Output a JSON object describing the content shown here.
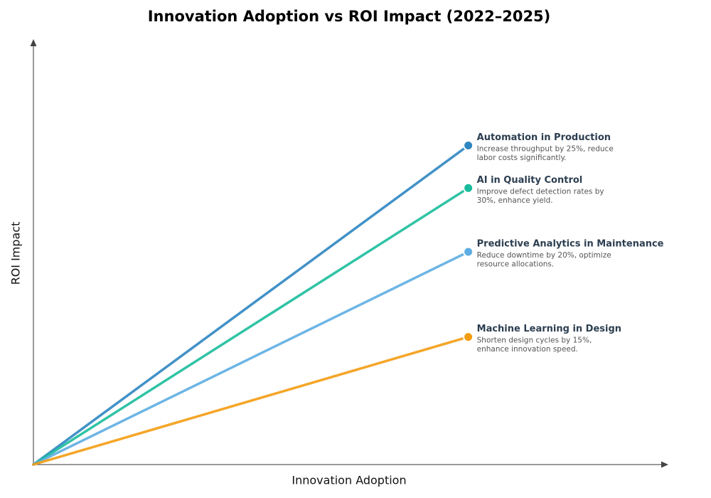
{
  "chart_data": {
    "type": "line",
    "title": "Innovation Adoption vs ROI Impact (2022–2025)",
    "x_label": "Innovation Adoption",
    "y_label": "ROI Impact",
    "xlim": [
      0,
      1.46
    ],
    "ylim": [
      0,
      1
    ],
    "series": [
      {
        "name": "Automation in Production",
        "color": "#2e86c1",
        "x": [
          0,
          1
        ],
        "values": [
          0,
          0.75
        ],
        "description": [
          "Increase throughput by 25%, reduce",
          "labor costs significantly."
        ]
      },
      {
        "name": "AI in Quality Control",
        "color": "#1abc9c",
        "x": [
          0,
          1
        ],
        "values": [
          0,
          0.65
        ],
        "description": [
          "Improve defect detection rates by",
          "30%, enhance yield."
        ]
      },
      {
        "name": "Predictive Analytics in Maintenance",
        "color": "#5dade2",
        "x": [
          0,
          1
        ],
        "values": [
          0,
          0.5
        ],
        "description": [
          "Reduce downtime by 20%, optimize",
          "resource allocations."
        ]
      },
      {
        "name": "Machine Learning in Design",
        "color": "#f39c12",
        "x": [
          0,
          1
        ],
        "values": [
          0,
          0.3
        ],
        "description": [
          "Shorten design cycles by 15%,",
          "enhance innovation speed."
        ]
      }
    ]
  }
}
